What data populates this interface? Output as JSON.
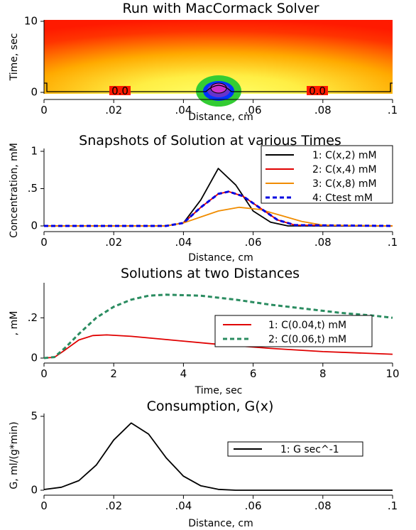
{
  "chart_data": [
    {
      "type": "heatmap",
      "title": "Run with MacCormack Solver",
      "xlabel": "Distance, cm",
      "ylabel": "Time, sec",
      "xlim": [
        0,
        0.1
      ],
      "ylim": [
        0,
        10
      ],
      "x_ticks": [
        "0",
        ".02",
        ".04",
        ".06",
        ".08",
        ".1"
      ],
      "y_ticks": [
        "0",
        "10"
      ],
      "contour_labels": [
        "0.0",
        "0.0"
      ],
      "colors": {
        "background": "#ff1a00",
        "mid": "#ffcc00",
        "light": "#ffff66",
        "green": "#33cc33",
        "blue": "#0033ff",
        "magenta": "#cc33cc"
      }
    },
    {
      "type": "line",
      "title": "Snapshots of Solution at various Times",
      "xlabel": "Distance, cm",
      "ylabel": "Concentration, mM",
      "xlim": [
        0,
        0.1
      ],
      "ylim": [
        0,
        1
      ],
      "x_ticks": [
        "0",
        ".02",
        ".04",
        ".06",
        ".08",
        ".1"
      ],
      "y_ticks": [
        "0",
        ".5",
        "1"
      ],
      "legend": "top-right",
      "series": [
        {
          "name": "1: C(x,2) mM",
          "color": "#000000",
          "dash": false,
          "x": [
            0,
            0.035,
            0.04,
            0.045,
            0.05,
            0.055,
            0.06,
            0.065,
            0.07,
            0.1
          ],
          "y": [
            0,
            0,
            0.04,
            0.35,
            0.77,
            0.55,
            0.2,
            0.05,
            0,
            0
          ]
        },
        {
          "name": "2: C(x,4) mM",
          "color": "#e00000",
          "dash": false,
          "x": [
            0,
            0.035,
            0.04,
            0.045,
            0.05,
            0.053,
            0.057,
            0.062,
            0.067,
            0.072,
            0.1
          ],
          "y": [
            0,
            0,
            0.04,
            0.25,
            0.43,
            0.46,
            0.4,
            0.24,
            0.08,
            0.01,
            0
          ]
        },
        {
          "name": "3: C(x,8) mM",
          "color": "#f08c00",
          "dash": false,
          "x": [
            0,
            0.035,
            0.04,
            0.045,
            0.05,
            0.056,
            0.062,
            0.068,
            0.074,
            0.08,
            0.1
          ],
          "y": [
            0,
            0,
            0.04,
            0.12,
            0.2,
            0.25,
            0.22,
            0.14,
            0.06,
            0.01,
            0
          ]
        },
        {
          "name": "4: Ctest mM",
          "color": "#0000e0",
          "dash": true,
          "x": [
            0,
            0.035,
            0.04,
            0.045,
            0.05,
            0.053,
            0.057,
            0.062,
            0.067,
            0.072,
            0.1
          ],
          "y": [
            0,
            0,
            0.04,
            0.25,
            0.43,
            0.46,
            0.4,
            0.24,
            0.08,
            0.01,
            0
          ]
        }
      ]
    },
    {
      "type": "line",
      "title": "Solutions at two Distances",
      "xlabel": "Time, sec",
      "ylabel": ", mM",
      "xlim": [
        0,
        10
      ],
      "ylim": [
        0,
        0.36
      ],
      "x_ticks": [
        "0",
        "2",
        "4",
        "6",
        "8",
        "10"
      ],
      "y_ticks": [
        "0",
        ".2"
      ],
      "legend": "right",
      "series": [
        {
          "name": "1: C(0.04,t) mM",
          "color": "#e00000",
          "dash": false,
          "x": [
            0,
            0.3,
            0.6,
            1,
            1.4,
            1.8,
            2.5,
            3.5,
            5,
            6.5,
            8,
            10
          ],
          "y": [
            0,
            0.004,
            0.04,
            0.09,
            0.112,
            0.115,
            0.108,
            0.092,
            0.068,
            0.048,
            0.032,
            0.019
          ]
        },
        {
          "name": "2: C(0.06,t) mM",
          "color": "#2a8c60",
          "dash": true,
          "x": [
            0,
            0.3,
            0.6,
            1,
            1.5,
            2,
            2.5,
            3,
            3.5,
            4.5,
            5.5,
            6.5,
            7.5,
            8.5,
            9.5,
            10
          ],
          "y": [
            0,
            0.005,
            0.05,
            0.12,
            0.2,
            0.255,
            0.29,
            0.31,
            0.315,
            0.31,
            0.29,
            0.265,
            0.245,
            0.225,
            0.21,
            0.2
          ]
        }
      ]
    },
    {
      "type": "line",
      "title": "Consumption, G(x)",
      "xlabel": "Distance, cm",
      "ylabel": "G, ml/(g*min)",
      "xlim": [
        0,
        0.1
      ],
      "ylim": [
        0,
        5
      ],
      "x_ticks": [
        "0",
        ".02",
        ".04",
        ".06",
        ".08",
        ".1"
      ],
      "y_ticks": [
        "0",
        "5"
      ],
      "legend": "right",
      "series": [
        {
          "name": "1: G sec^-1",
          "color": "#000000",
          "dash": false,
          "x": [
            0,
            0.005,
            0.01,
            0.015,
            0.02,
            0.025,
            0.03,
            0.035,
            0.04,
            0.045,
            0.05,
            0.055,
            0.1
          ],
          "y": [
            0.05,
            0.2,
            0.65,
            1.7,
            3.4,
            4.55,
            3.8,
            2.2,
            0.95,
            0.3,
            0.06,
            0,
            0
          ]
        }
      ]
    }
  ]
}
